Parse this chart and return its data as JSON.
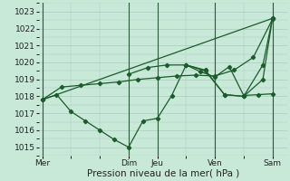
{
  "background_color": "#c8e8d8",
  "grid_color": "#a8ccc0",
  "line_color": "#1a5c2a",
  "xlabel": "Pression niveau de la mer( hPa )",
  "ylim": [
    1014.5,
    1023.5
  ],
  "yticks": [
    1015,
    1016,
    1017,
    1018,
    1019,
    1020,
    1021,
    1022,
    1023
  ],
  "day_labels": [
    "Mer",
    "Dim",
    "Jeu",
    "Ven",
    "Sam"
  ],
  "day_positions": [
    0,
    9,
    12,
    18,
    24
  ],
  "xlim": [
    -0.3,
    25.5
  ],
  "line1": {
    "x": [
      0,
      24
    ],
    "y": [
      1017.8,
      1022.6
    ],
    "marker": false
  },
  "line2": {
    "x": [
      0,
      2,
      4,
      6,
      8,
      10,
      12,
      14,
      16,
      18,
      20,
      22,
      24
    ],
    "y": [
      1017.8,
      1018.55,
      1018.65,
      1018.75,
      1018.85,
      1019.0,
      1019.1,
      1019.2,
      1019.25,
      1019.2,
      1019.55,
      1020.3,
      1022.55
    ],
    "marker": true
  },
  "line3": {
    "x": [
      0,
      1.5,
      3,
      4.5,
      6,
      7.5,
      9,
      10.5,
      12,
      13.5,
      15,
      16.5,
      18,
      19.5,
      21,
      22.5,
      24
    ],
    "y": [
      1017.8,
      1018.1,
      1017.1,
      1016.55,
      1016.0,
      1015.45,
      1015.0,
      1016.55,
      1016.7,
      1018.05,
      1019.85,
      1019.45,
      1019.15,
      1019.75,
      1018.05,
      1018.1,
      1018.15
    ],
    "marker": true
  },
  "line4": {
    "x": [
      9,
      11,
      13,
      15,
      17,
      19,
      21,
      23,
      24
    ],
    "y": [
      1019.3,
      1019.7,
      1019.85,
      1019.85,
      1019.5,
      1018.1,
      1018.0,
      1019.85,
      1022.6
    ],
    "marker": true
  },
  "line5": {
    "x": [
      15,
      17,
      19,
      21,
      23,
      24
    ],
    "y": [
      1019.85,
      1019.55,
      1018.1,
      1018.0,
      1019.0,
      1022.6
    ],
    "marker": true
  }
}
